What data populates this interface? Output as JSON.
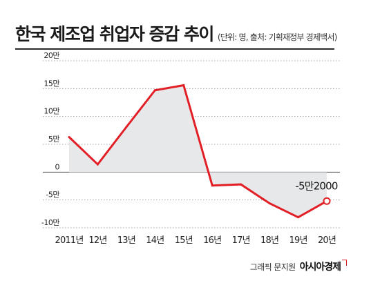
{
  "header": {
    "title": "한국 제조업 취업자 증감 추이",
    "subtitle": "(단위: 명, 출처: 기획재정부 경제백서)"
  },
  "credit": {
    "byline": "그래픽 문지원",
    "brand": "아시아경제"
  },
  "colors": {
    "line": "#e21f26",
    "area": "#e7e8e9",
    "grid": "#888888",
    "text": "#222222"
  },
  "chart_data": {
    "type": "area",
    "categories": [
      "2011년",
      "12년",
      "13년",
      "14년",
      "15년",
      "16년",
      "17년",
      "18년",
      "19년",
      "20년"
    ],
    "series": [
      {
        "values": [
          63000,
          14000,
          81000,
          147000,
          156000,
          -24000,
          -22000,
          -56000,
          -81000,
          -52000
        ]
      }
    ],
    "ylim": [
      -100000,
      200000
    ],
    "yticks": [
      200000,
      150000,
      100000,
      50000,
      0,
      -50000,
      -100000
    ],
    "ytick_labels": [
      "20만",
      "15만",
      "10만",
      "5만",
      "0",
      "-5만",
      "-10만"
    ],
    "annotation": {
      "category": "20년",
      "label": "-5만2000"
    },
    "grid": "horizontal dotted"
  }
}
